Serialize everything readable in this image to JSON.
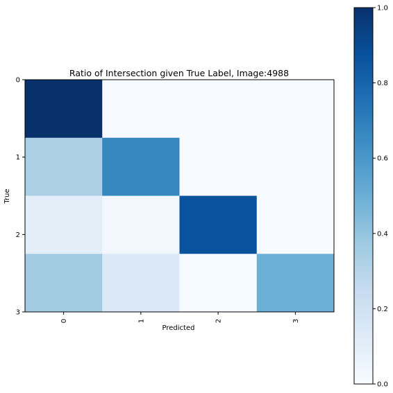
{
  "chart_data": {
    "type": "heatmap",
    "title": "Ratio of Intersection given True Label, Image:4988",
    "xlabel": "Predicted",
    "ylabel": "True",
    "x_categories": [
      "0",
      "1",
      "2",
      "3"
    ],
    "y_categories": [
      "0",
      "1",
      "2",
      "3"
    ],
    "y_tick_labels": [
      "0",
      "1",
      "2",
      "3"
    ],
    "values": [
      [
        1.0,
        0.0,
        0.0,
        0.0
      ],
      [
        0.33,
        0.67,
        0.0,
        0.0
      ],
      [
        0.1,
        0.03,
        0.87,
        0.0
      ],
      [
        0.36,
        0.14,
        0.01,
        0.5
      ]
    ],
    "colormap": "Blues",
    "color_range": [
      0,
      1
    ],
    "colorbar": {
      "ticks": [
        0.0,
        0.2,
        0.4,
        0.6,
        0.8,
        1.0
      ],
      "tick_labels": [
        "0.0",
        "0.2",
        "0.4",
        "0.6",
        "0.8",
        "1.0"
      ],
      "placement": "right"
    }
  }
}
